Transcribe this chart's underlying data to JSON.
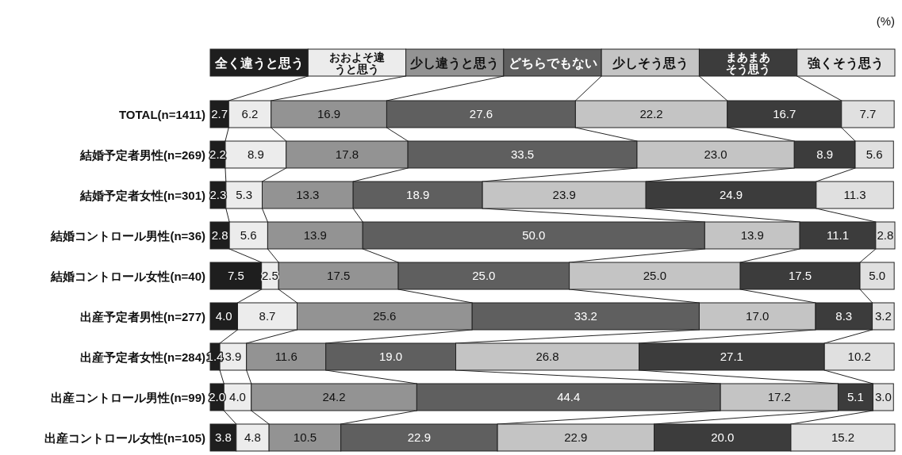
{
  "chart_data": {
    "type": "bar",
    "orientation": "horizontal",
    "stacked": true,
    "legend": "top",
    "tick_labels": "y",
    "annotations": [
      "(%)"
    ],
    "categories": [
      "TOTAL(n=1411)",
      "結婚予定者男性(n=269)",
      "結婚予定者女性(n=301)",
      "結婚コントロール男性(n=36)",
      "結婚コントロール女性(n=40)",
      "出産予定者男性(n=277)",
      "出産予定者女性(n=284)",
      "出産コントロール男性(n=99)",
      "出産コントロール女性(n=105)"
    ],
    "series": [
      {
        "name": "全く違うと思う",
        "color": "#1e1e1e",
        "values": [
          2.7,
          2.2,
          2.3,
          2.8,
          7.5,
          4.0,
          1.4,
          2.0,
          3.8
        ],
        "value_labels": [
          "2.7",
          "2.2",
          "2.3",
          "2.8",
          "7.5",
          "4.0",
          "1.4",
          "2.0",
          "3.8"
        ]
      },
      {
        "name": "おおよそ違うと思う",
        "color": "#ececec",
        "values": [
          6.2,
          8.9,
          5.3,
          5.6,
          2.5,
          8.7,
          3.9,
          4.0,
          4.8
        ],
        "value_labels": [
          "6.2",
          "8.9",
          "5.3",
          "5.6",
          "2.5",
          "8.7",
          "3.9",
          "4.0",
          "4.8"
        ]
      },
      {
        "name": "少し違うと思う",
        "color": "#939393",
        "values": [
          16.9,
          17.8,
          13.3,
          13.9,
          17.5,
          25.6,
          11.6,
          24.2,
          10.5
        ],
        "value_labels": [
          "16.9",
          "17.8",
          "13.3",
          "13.9",
          "17.5",
          "25.6",
          "11.6",
          "24.2",
          "10.5"
        ]
      },
      {
        "name": "どちらでもない",
        "color": "#5f5f5f",
        "values": [
          27.6,
          33.5,
          18.9,
          50.0,
          25.0,
          33.2,
          19.0,
          44.4,
          22.9
        ],
        "value_labels": [
          "27.6",
          "33.5",
          "18.9",
          "50.0",
          "25.0",
          "33.2",
          "19.0",
          "44.4",
          "22.9"
        ]
      },
      {
        "name": "少しそう思う",
        "color": "#c4c4c4",
        "values": [
          22.2,
          23.0,
          23.9,
          13.9,
          25.0,
          17.0,
          26.8,
          17.2,
          22.9
        ],
        "value_labels": [
          "22.2",
          "23.0",
          "23.9",
          "13.9",
          "25.0",
          "17.0",
          "26.8",
          "17.2",
          "22.9"
        ]
      },
      {
        "name": "まあまあそう思う",
        "color": "#3c3c3c",
        "values": [
          16.7,
          8.9,
          24.9,
          11.1,
          17.5,
          8.3,
          27.1,
          5.1,
          20.0
        ],
        "value_labels": [
          "16.7",
          "8.9",
          "24.9",
          "11.1",
          "17.5",
          "8.3",
          "27.1",
          "5.1",
          "20.0"
        ]
      },
      {
        "name": "強くそう思う",
        "color": "#e0e0e0",
        "values": [
          7.7,
          5.6,
          11.3,
          2.8,
          5.0,
          3.2,
          10.2,
          3.0,
          15.2
        ],
        "value_labels": [
          "7.7",
          "5.6",
          "11.3",
          "2.8",
          "5.0",
          "3.2",
          "10.2",
          "3.0",
          "15.2"
        ]
      }
    ]
  }
}
